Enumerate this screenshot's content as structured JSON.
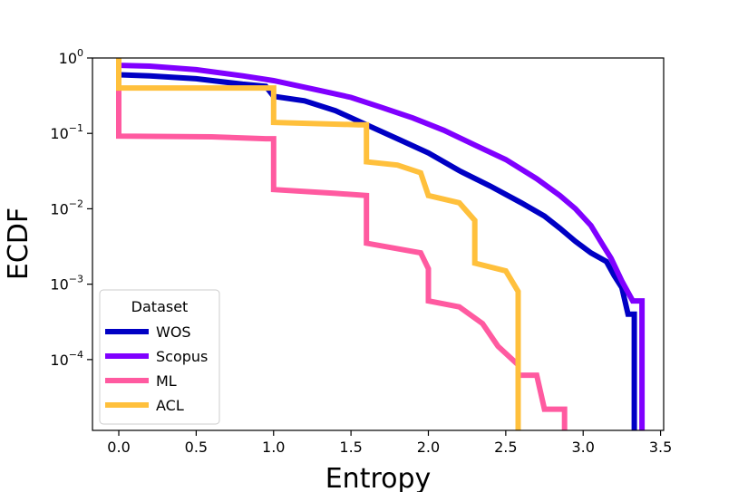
{
  "chart_data": {
    "type": "line",
    "title": "",
    "xlabel": "Entropy",
    "ylabel": "ECDF",
    "xlim": [
      -0.17,
      3.52
    ],
    "ylim": [
      1.15e-05,
      1.0
    ],
    "yscale": "log",
    "x_ticks": [
      0.0,
      0.5,
      1.0,
      1.5,
      2.0,
      2.5,
      3.0,
      3.5
    ],
    "x_tick_labels": [
      "0.0",
      "0.5",
      "1.0",
      "1.5",
      "2.0",
      "2.5",
      "3.0",
      "3.5"
    ],
    "y_ticks": [
      {
        "value": 1,
        "base": "10",
        "exp": "0"
      },
      {
        "value": 0.1,
        "base": "10",
        "exp": "−1"
      },
      {
        "value": 0.01,
        "base": "10",
        "exp": "−2"
      },
      {
        "value": 0.001,
        "base": "10",
        "exp": "−3"
      },
      {
        "value": 0.0001,
        "base": "10",
        "exp": "−4"
      }
    ],
    "legend": {
      "title": "Dataset",
      "position": "lower-left"
    },
    "series": [
      {
        "name": "WOS",
        "color": "#0000c4",
        "points": [
          [
            0,
            1.0
          ],
          [
            0,
            0.6
          ],
          [
            0.2,
            0.58
          ],
          [
            0.5,
            0.53
          ],
          [
            0.8,
            0.45
          ],
          [
            0.95,
            0.42
          ],
          [
            1.0,
            0.31
          ],
          [
            1.2,
            0.27
          ],
          [
            1.4,
            0.2
          ],
          [
            1.6,
            0.13
          ],
          [
            1.8,
            0.085
          ],
          [
            2.0,
            0.055
          ],
          [
            2.2,
            0.032
          ],
          [
            2.4,
            0.02
          ],
          [
            2.6,
            0.012
          ],
          [
            2.75,
            0.008
          ],
          [
            2.85,
            0.0055
          ],
          [
            2.95,
            0.0037
          ],
          [
            3.05,
            0.0026
          ],
          [
            3.15,
            0.002
          ],
          [
            3.2,
            0.0013
          ],
          [
            3.25,
            0.0009
          ],
          [
            3.29,
            0.0004
          ],
          [
            3.33,
            0.0004
          ],
          [
            3.33,
            1.15e-05
          ]
        ]
      },
      {
        "name": "Scopus",
        "color": "#8000ff",
        "points": [
          [
            0,
            1.0
          ],
          [
            0,
            0.8
          ],
          [
            0.2,
            0.78
          ],
          [
            0.5,
            0.7
          ],
          [
            0.8,
            0.58
          ],
          [
            1.0,
            0.5
          ],
          [
            1.3,
            0.37
          ],
          [
            1.5,
            0.3
          ],
          [
            1.7,
            0.22
          ],
          [
            1.9,
            0.16
          ],
          [
            2.1,
            0.11
          ],
          [
            2.3,
            0.07
          ],
          [
            2.5,
            0.045
          ],
          [
            2.7,
            0.025
          ],
          [
            2.85,
            0.015
          ],
          [
            2.95,
            0.01
          ],
          [
            3.05,
            0.006
          ],
          [
            3.12,
            0.0035
          ],
          [
            3.18,
            0.0022
          ],
          [
            3.25,
            0.0011
          ],
          [
            3.32,
            0.0006
          ],
          [
            3.38,
            0.0006
          ],
          [
            3.38,
            0.0003
          ],
          [
            3.38,
            1.15e-05
          ]
        ]
      },
      {
        "name": "ML",
        "color": "#ff5aa0",
        "points": [
          [
            0,
            1.0
          ],
          [
            0,
            0.092
          ],
          [
            0.6,
            0.09
          ],
          [
            0.95,
            0.085
          ],
          [
            1.0,
            0.085
          ],
          [
            1.0,
            0.018
          ],
          [
            1.4,
            0.016
          ],
          [
            1.6,
            0.015
          ],
          [
            1.6,
            0.0035
          ],
          [
            1.95,
            0.0026
          ],
          [
            2.0,
            0.0016
          ],
          [
            2.0,
            0.0006
          ],
          [
            2.2,
            0.0005
          ],
          [
            2.35,
            0.0003
          ],
          [
            2.45,
            0.00015
          ],
          [
            2.58,
            8.5e-05
          ],
          [
            2.58,
            6.2e-05
          ],
          [
            2.7,
            6.2e-05
          ],
          [
            2.75,
            2.2e-05
          ],
          [
            2.88,
            2.2e-05
          ],
          [
            2.88,
            1.15e-05
          ]
        ]
      },
      {
        "name": "ACL",
        "color": "#ffc03c",
        "points": [
          [
            0,
            1.0
          ],
          [
            0,
            0.4
          ],
          [
            0.95,
            0.4
          ],
          [
            1.0,
            0.4
          ],
          [
            1.0,
            0.14
          ],
          [
            1.55,
            0.13
          ],
          [
            1.6,
            0.13
          ],
          [
            1.6,
            0.042
          ],
          [
            1.8,
            0.038
          ],
          [
            1.95,
            0.03
          ],
          [
            2.0,
            0.015
          ],
          [
            2.2,
            0.012
          ],
          [
            2.3,
            0.007
          ],
          [
            2.3,
            0.0019
          ],
          [
            2.5,
            0.0015
          ],
          [
            2.58,
            0.0008
          ],
          [
            2.58,
            1.15e-05
          ]
        ]
      }
    ]
  }
}
